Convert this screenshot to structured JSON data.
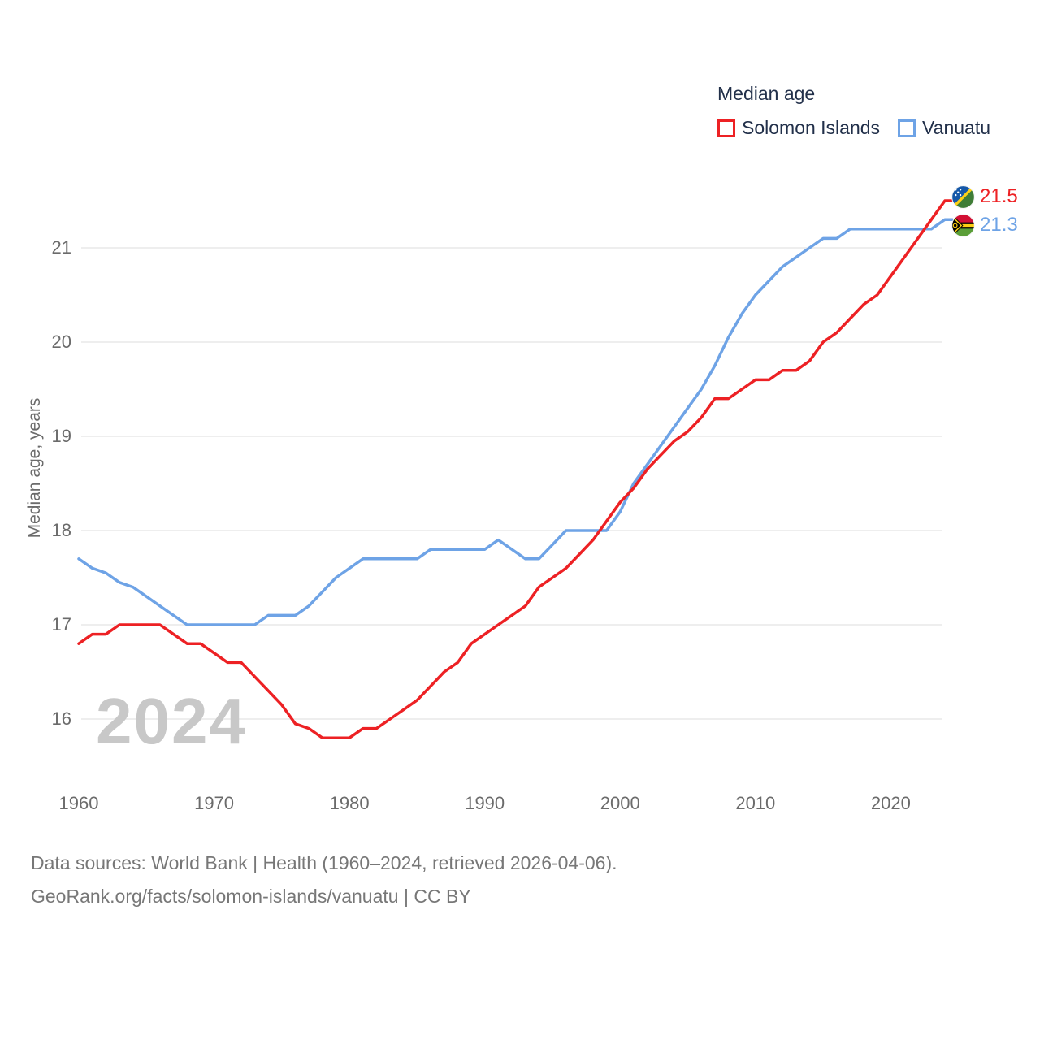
{
  "legend": {
    "title": "Median age",
    "items": [
      {
        "label": "Solomon Islands",
        "color": "#ed2124"
      },
      {
        "label": "Vanuatu",
        "color": "#6ea3e6"
      }
    ]
  },
  "watermark": "2024",
  "y_axis": {
    "title": "Median age, years",
    "ticks": [
      "21",
      "20",
      "19",
      "18",
      "17",
      "16"
    ]
  },
  "x_axis": {
    "ticks": [
      "1960",
      "1970",
      "1980",
      "1990",
      "2000",
      "2010",
      "2020"
    ]
  },
  "end_labels": [
    {
      "value": "21.5",
      "series": "Solomon Islands",
      "color": "#ed2124",
      "flag": "solomon-islands-flag"
    },
    {
      "value": "21.3",
      "series": "Vanuatu",
      "color": "#6ea3e6",
      "flag": "vanuatu-flag"
    }
  ],
  "footer": {
    "line1": "Data sources: World Bank | Health (1960–2024, retrieved 2026-04-06).",
    "line2": "GeoRank.org/facts/solomon-islands/vanuatu | CC BY"
  },
  "chart_data": {
    "type": "line",
    "title": "Median age",
    "ylabel": "Median age, years",
    "x_start": 1960,
    "x_end": 2024,
    "x_step": 1,
    "ylim": [
      15.5,
      21.7
    ],
    "grid": "horizontal",
    "legend_position": "top-right",
    "x_ticks": [
      1960,
      1970,
      1980,
      1990,
      2000,
      2010,
      2020
    ],
    "y_ticks": [
      16,
      17,
      18,
      19,
      20,
      21
    ],
    "series": [
      {
        "name": "Solomon Islands",
        "color": "#ed2124",
        "end_value": 21.5,
        "values": [
          16.8,
          16.9,
          16.9,
          17.0,
          17.0,
          17.0,
          17.0,
          16.9,
          16.8,
          16.8,
          16.7,
          16.6,
          16.6,
          16.45,
          16.3,
          16.15,
          15.95,
          15.9,
          15.8,
          15.8,
          15.8,
          15.9,
          15.9,
          16.0,
          16.1,
          16.2,
          16.35,
          16.5,
          16.6,
          16.8,
          16.9,
          17.0,
          17.1,
          17.2,
          17.4,
          17.5,
          17.6,
          17.75,
          17.9,
          18.1,
          18.3,
          18.45,
          18.65,
          18.8,
          18.95,
          19.05,
          19.2,
          19.4,
          19.4,
          19.5,
          19.6,
          19.6,
          19.7,
          19.7,
          19.8,
          20.0,
          20.1,
          20.25,
          20.4,
          20.5,
          20.7,
          20.9,
          21.1,
          21.3,
          21.5
        ]
      },
      {
        "name": "Vanuatu",
        "color": "#6ea3e6",
        "end_value": 21.3,
        "values": [
          17.7,
          17.6,
          17.55,
          17.45,
          17.4,
          17.3,
          17.2,
          17.1,
          17.0,
          17.0,
          17.0,
          17.0,
          17.0,
          17.0,
          17.1,
          17.1,
          17.1,
          17.2,
          17.35,
          17.5,
          17.6,
          17.7,
          17.7,
          17.7,
          17.7,
          17.7,
          17.8,
          17.8,
          17.8,
          17.8,
          17.8,
          17.9,
          17.8,
          17.7,
          17.7,
          17.85,
          18.0,
          18.0,
          18.0,
          18.0,
          18.2,
          18.5,
          18.7,
          18.9,
          19.1,
          19.3,
          19.5,
          19.75,
          20.05,
          20.3,
          20.5,
          20.65,
          20.8,
          20.9,
          21.0,
          21.1,
          21.1,
          21.2,
          21.2,
          21.2,
          21.2,
          21.2,
          21.2,
          21.2,
          21.3
        ]
      }
    ]
  }
}
